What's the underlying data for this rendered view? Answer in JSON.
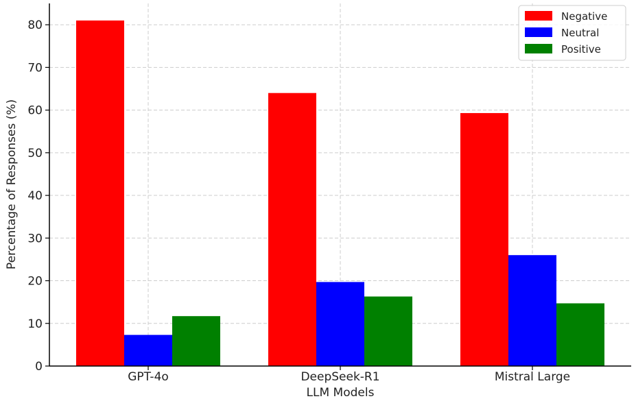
{
  "chart_data": {
    "type": "bar",
    "title": "",
    "xlabel": "LLM Models",
    "ylabel": "Percentage of Responses (%)",
    "categories": [
      "GPT-4o",
      "DeepSeek-R1",
      "Mistral Large"
    ],
    "series": [
      {
        "name": "Negative",
        "color": "#ff0000",
        "values": [
          81.0,
          64.0,
          59.3
        ]
      },
      {
        "name": "Neutral",
        "color": "#0000ff",
        "values": [
          7.3,
          19.7,
          26.0
        ]
      },
      {
        "name": "Positive",
        "color": "#008000",
        "values": [
          11.7,
          16.3,
          14.7
        ]
      }
    ],
    "ylim": [
      0,
      85
    ],
    "yticks": [
      0,
      10,
      20,
      30,
      40,
      50,
      60,
      70,
      80
    ],
    "grid": true,
    "legend_position": "top-right"
  }
}
